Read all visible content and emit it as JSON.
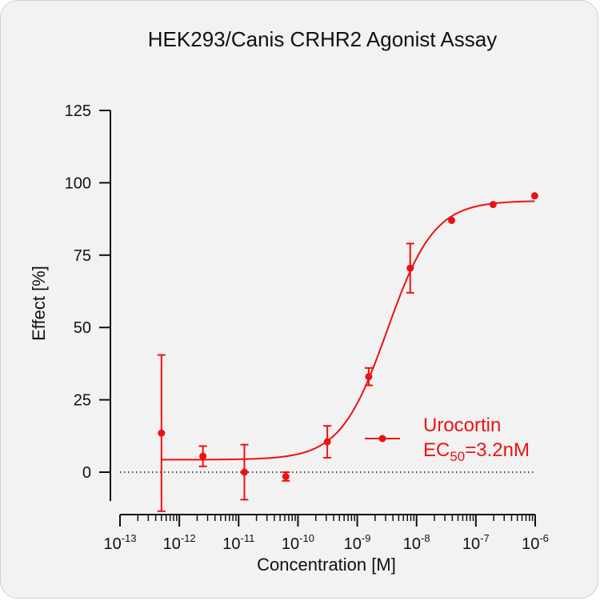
{
  "chart_data": {
    "type": "scatter",
    "title": "HEK293/Canis CRHR2 Agonist Assay",
    "xlabel": "Concentration [M]",
    "ylabel": "Effect  [%]",
    "x_scale": "log10",
    "xlim": [
      1e-13,
      1e-06
    ],
    "ylim": [
      -10,
      125
    ],
    "y_ticks": [
      0,
      25,
      50,
      75,
      100,
      125
    ],
    "x_tick_labels": [
      {
        "base": "10",
        "exp": "-13"
      },
      {
        "base": "10",
        "exp": "-12"
      },
      {
        "base": "10",
        "exp": "-11"
      },
      {
        "base": "10",
        "exp": "-10"
      },
      {
        "base": "10",
        "exp": "-9"
      },
      {
        "base": "10",
        "exp": "-8"
      },
      {
        "base": "10",
        "exp": "-7"
      },
      {
        "base": "10",
        "exp": "-6"
      }
    ],
    "zero_reference_line": true,
    "color": "#ee1111",
    "series": [
      {
        "name": "Urocortin",
        "x": [
          5e-13,
          2.5e-12,
          1.25e-11,
          6.25e-11,
          3.125e-10,
          1.5625e-09,
          7.8125e-09,
          3.9e-08,
          1.95e-07,
          9.8e-07
        ],
        "y": [
          13.5,
          5.5,
          0,
          -1.5,
          10.5,
          33,
          70.5,
          87,
          92.5,
          95.5
        ],
        "error": [
          27,
          3.5,
          9.5,
          1.5,
          5.5,
          3,
          8.5,
          0,
          0,
          0
        ],
        "fit": {
          "model": "four-parameter logistic",
          "bottom": 4.3,
          "top": 93.8,
          "ec50": 3.2e-09,
          "hill": 1.1
        }
      }
    ],
    "legend": {
      "position": "bottom-right",
      "entries": [
        {
          "label": "Urocortin",
          "ec_prefix": "EC",
          "ec_sub": "50",
          "ec_value": "=3.2nM"
        }
      ]
    }
  }
}
